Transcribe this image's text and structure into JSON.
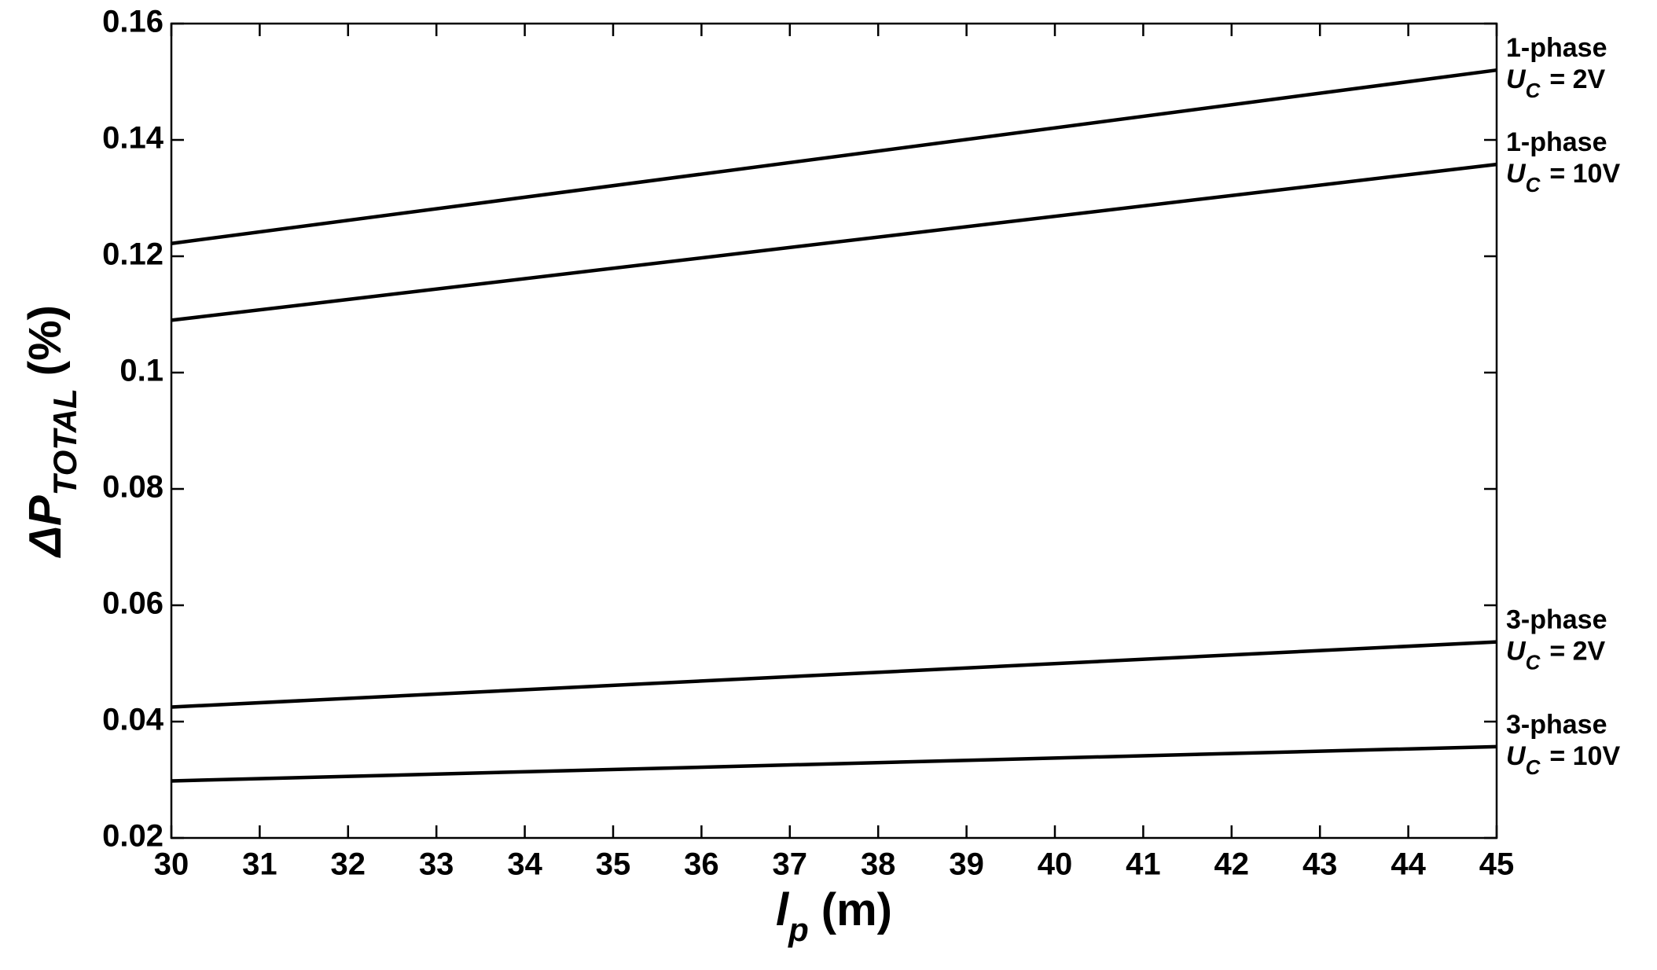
{
  "chart_data": {
    "type": "line",
    "x_label": {
      "symbol": "l",
      "subscript": "p",
      "unit": "(m)"
    },
    "y_label": {
      "symbol": "ΔP",
      "subscript": "TOTAL",
      "unit": "(%)"
    },
    "x": [
      30,
      45
    ],
    "series": [
      {
        "name": "1-phase",
        "condition": {
          "symbol": "U",
          "subscript": "C",
          "text": "= 2V"
        },
        "color": "#000000",
        "values": [
          0.1222,
          0.152
        ]
      },
      {
        "name": "1-phase",
        "condition": {
          "symbol": "U",
          "subscript": "C",
          "text": "= 10V"
        },
        "color": "#000000",
        "values": [
          0.109,
          0.1358
        ]
      },
      {
        "name": "3-phase",
        "condition": {
          "symbol": "U",
          "subscript": "C",
          "text": "= 2V"
        },
        "color": "#000000",
        "values": [
          0.0425,
          0.0537
        ]
      },
      {
        "name": "3-phase",
        "condition": {
          "symbol": "U",
          "subscript": "C",
          "text": "= 10V"
        },
        "color": "#000000",
        "values": [
          0.0298,
          0.0357
        ]
      }
    ],
    "xlim": [
      30,
      45
    ],
    "xticks": [
      30,
      31,
      32,
      33,
      34,
      35,
      36,
      37,
      38,
      39,
      40,
      41,
      42,
      43,
      44,
      45
    ],
    "ylim": [
      0.02,
      0.16
    ],
    "yticks": [
      0.02,
      0.04,
      0.06,
      0.08,
      0.1,
      0.12,
      0.14,
      0.16
    ],
    "grid": false
  }
}
